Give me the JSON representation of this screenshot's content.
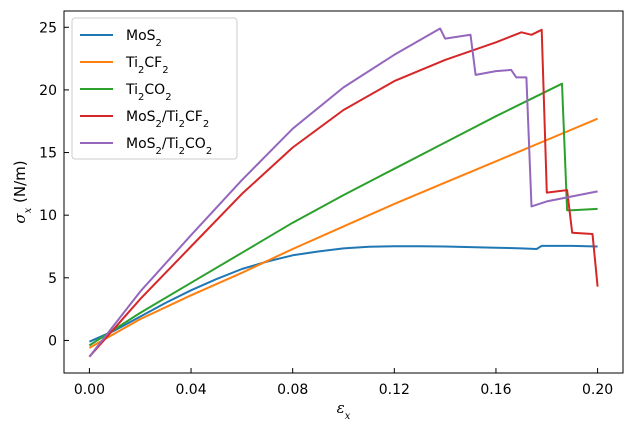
{
  "chart_data": {
    "type": "line",
    "xlabel": "ε_x",
    "ylabel": "σ_x (N/m)",
    "xlim": [
      -0.01,
      0.21
    ],
    "ylim": [
      -2.6,
      26.3
    ],
    "xticks": [
      0.0,
      0.04,
      0.08,
      0.12,
      0.16,
      0.2
    ],
    "xtick_labels": [
      "0.00",
      "0.04",
      "0.08",
      "0.12",
      "0.16",
      "0.20"
    ],
    "yticks": [
      0,
      5,
      10,
      15,
      20,
      25
    ],
    "ytick_labels": [
      "0",
      "5",
      "10",
      "15",
      "20",
      "25"
    ],
    "grid": false,
    "legend_position": "upper-left",
    "series": [
      {
        "name": "MoS2",
        "label_main": "MoS",
        "label_sub": "2",
        "label_tail": "",
        "color": "#1f77b4",
        "x": [
          0.0,
          0.01,
          0.02,
          0.03,
          0.04,
          0.05,
          0.06,
          0.07,
          0.08,
          0.09,
          0.1,
          0.11,
          0.12,
          0.13,
          0.14,
          0.15,
          0.16,
          0.17,
          0.176,
          0.178,
          0.18,
          0.19,
          0.2
        ],
        "y": [
          -0.1,
          0.8,
          1.9,
          3.0,
          4.0,
          4.9,
          5.7,
          6.3,
          6.8,
          7.1,
          7.35,
          7.48,
          7.52,
          7.52,
          7.5,
          7.45,
          7.4,
          7.35,
          7.3,
          7.55,
          7.55,
          7.55,
          7.5
        ]
      },
      {
        "name": "Ti2CF2",
        "label_main": "Ti",
        "label_sub": "2",
        "label_tail": "CF",
        "label_sub2": "2",
        "color": "#ff7f0e",
        "x": [
          0.0,
          0.02,
          0.04,
          0.06,
          0.08,
          0.1,
          0.12,
          0.14,
          0.16,
          0.18,
          0.2
        ],
        "y": [
          -0.6,
          1.7,
          3.6,
          5.4,
          7.3,
          9.1,
          10.9,
          12.6,
          14.3,
          16.0,
          17.7
        ]
      },
      {
        "name": "Ti2CO2",
        "label_main": "Ti",
        "label_sub": "2",
        "label_tail": "CO",
        "label_sub2": "2",
        "color": "#2ca02c",
        "x": [
          0.0,
          0.02,
          0.04,
          0.06,
          0.08,
          0.1,
          0.12,
          0.14,
          0.16,
          0.18,
          0.186,
          0.188,
          0.19,
          0.2
        ],
        "y": [
          -0.4,
          2.2,
          4.6,
          7.0,
          9.4,
          11.6,
          13.7,
          15.8,
          17.9,
          19.9,
          20.5,
          10.4,
          10.4,
          10.5
        ]
      },
      {
        "name": "MoS2/Ti2CF2",
        "label_main": "MoS",
        "label_sub": "2",
        "label_tail": "/Ti",
        "label_sub2": "2",
        "label_tail2": "CF",
        "label_sub3": "2",
        "color": "#d62728",
        "x": [
          0.0,
          0.02,
          0.04,
          0.06,
          0.08,
          0.1,
          0.12,
          0.14,
          0.16,
          0.17,
          0.174,
          0.178,
          0.18,
          0.184,
          0.188,
          0.19,
          0.198,
          0.2
        ],
        "y": [
          -1.3,
          3.3,
          7.5,
          11.7,
          15.4,
          18.4,
          20.7,
          22.4,
          23.8,
          24.6,
          24.4,
          24.8,
          11.8,
          11.9,
          12.0,
          8.6,
          8.5,
          4.3
        ]
      },
      {
        "name": "MoS2/Ti2CO2",
        "label_main": "MoS",
        "label_sub": "2",
        "label_tail": "/Ti",
        "label_sub2": "2",
        "label_tail2": "CO",
        "label_sub3": "2",
        "color": "#9467bd",
        "x": [
          0.0,
          0.02,
          0.04,
          0.06,
          0.08,
          0.1,
          0.12,
          0.138,
          0.14,
          0.15,
          0.152,
          0.16,
          0.166,
          0.168,
          0.172,
          0.174,
          0.18,
          0.19,
          0.2
        ],
        "y": [
          -1.3,
          3.9,
          8.4,
          12.8,
          16.9,
          20.2,
          22.8,
          24.9,
          24.1,
          24.4,
          21.2,
          21.5,
          21.6,
          21.0,
          21.0,
          10.7,
          11.1,
          11.5,
          11.9
        ]
      }
    ]
  }
}
